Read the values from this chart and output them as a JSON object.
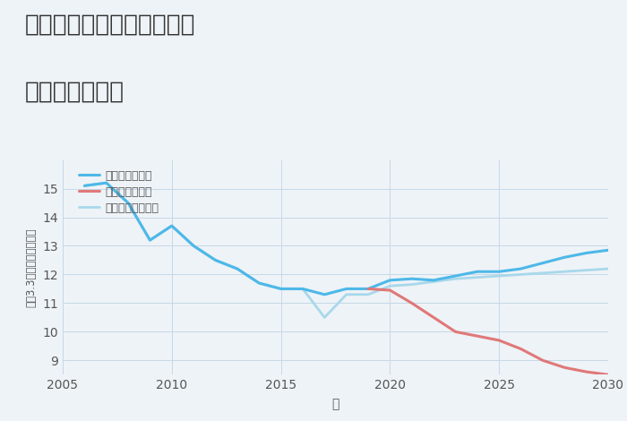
{
  "title_line1": "三重県桑名市長島町松蔭の",
  "title_line2": "土地の価格推移",
  "xlabel": "年",
  "ylabel": "平（3.3㎡）単価（万円）",
  "background_color": "#eef3f7",
  "plot_background": "#eef3f7",
  "good_scenario": {
    "label": "グッドシナリオ",
    "color": "#4db8e8",
    "years": [
      2006,
      2007,
      2008,
      2009,
      2010,
      2011,
      2012,
      2013,
      2014,
      2015,
      2016,
      2017,
      2018,
      2019,
      2020,
      2021,
      2022,
      2023,
      2024,
      2025,
      2026,
      2027,
      2028,
      2029,
      2030
    ],
    "values": [
      15.1,
      15.2,
      14.5,
      13.2,
      13.7,
      13.0,
      12.5,
      12.2,
      11.7,
      11.5,
      11.5,
      11.3,
      11.5,
      11.5,
      11.8,
      11.85,
      11.8,
      11.95,
      12.1,
      12.1,
      12.2,
      12.4,
      12.6,
      12.75,
      12.85
    ],
    "linewidth": 2.2
  },
  "bad_scenario": {
    "label": "バッドシナリオ",
    "color": "#e07878",
    "years": [
      2019,
      2020,
      2021,
      2022,
      2023,
      2024,
      2025,
      2026,
      2027,
      2028,
      2029,
      2030
    ],
    "values": [
      11.5,
      11.45,
      11.0,
      10.5,
      10.0,
      9.85,
      9.7,
      9.4,
      9.0,
      8.75,
      8.6,
      8.5
    ],
    "linewidth": 2.2
  },
  "normal_scenario": {
    "label": "ノーマルシナリオ",
    "color": "#a8d8ea",
    "years": [
      2006,
      2007,
      2008,
      2009,
      2010,
      2011,
      2012,
      2013,
      2014,
      2015,
      2016,
      2017,
      2018,
      2019,
      2020,
      2021,
      2022,
      2023,
      2024,
      2025,
      2026,
      2027,
      2028,
      2029,
      2030
    ],
    "values": [
      15.1,
      15.2,
      14.5,
      13.2,
      13.7,
      13.0,
      12.5,
      12.2,
      11.7,
      11.5,
      11.5,
      10.5,
      11.3,
      11.3,
      11.6,
      11.65,
      11.75,
      11.85,
      11.9,
      11.95,
      12.0,
      12.05,
      12.1,
      12.15,
      12.2
    ],
    "linewidth": 2.0
  },
  "xlim": [
    2005,
    2030
  ],
  "ylim": [
    8.5,
    16.0
  ],
  "yticks": [
    9,
    10,
    11,
    12,
    13,
    14,
    15
  ],
  "xticks": [
    2005,
    2010,
    2015,
    2020,
    2025,
    2030
  ],
  "grid_color": "#c5d8e8",
  "title_fontsize": 19,
  "axis_fontsize": 10,
  "legend_fontsize": 9
}
